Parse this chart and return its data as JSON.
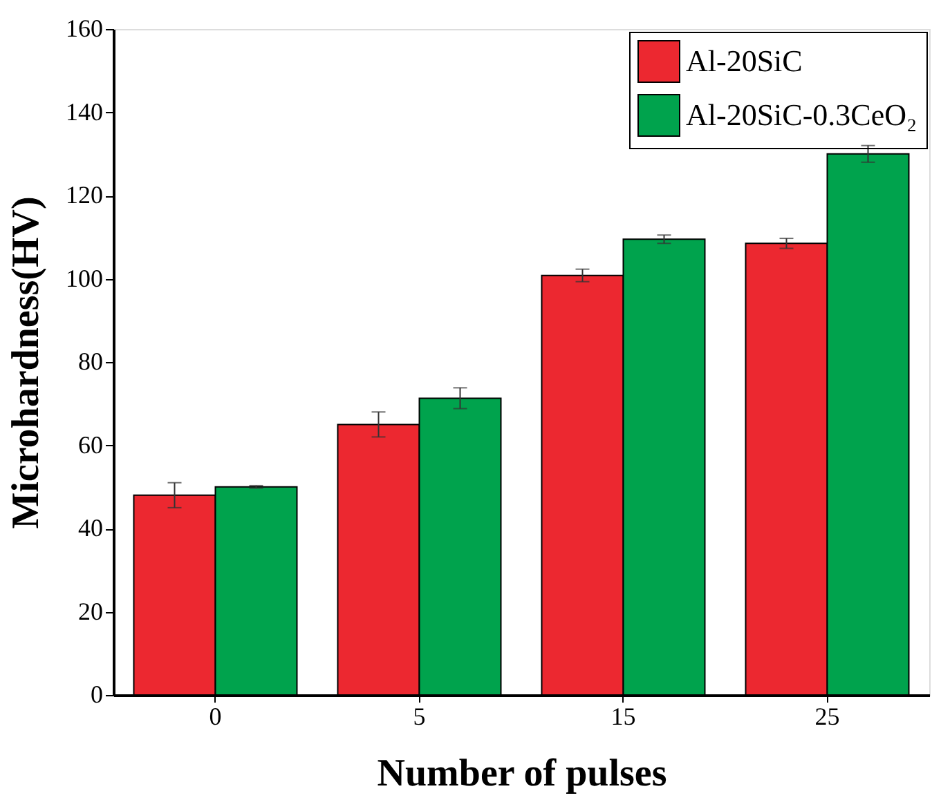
{
  "chart_data": {
    "type": "bar",
    "xlabel": "Number of pulses",
    "ylabel": "Microhardness(HV)",
    "categories": [
      "0",
      "5",
      "15",
      "25"
    ],
    "series": [
      {
        "name": "Al-20SiC",
        "color": "#ec2830",
        "values": [
          48,
          65,
          100.8,
          108.5
        ],
        "errors": [
          3,
          3,
          1.5,
          1.2
        ]
      },
      {
        "name": "Al-20SiC-0.3CeO₂",
        "color": "#00a34d",
        "values": [
          50,
          71.3,
          109.5,
          130
        ],
        "errors": [
          0.3,
          2.5,
          1,
          2
        ]
      }
    ],
    "ylim": [
      0,
      160
    ],
    "yticks": [
      0,
      20,
      40,
      60,
      80,
      100,
      120,
      140,
      160
    ],
    "grid": false,
    "legend": "top right"
  }
}
